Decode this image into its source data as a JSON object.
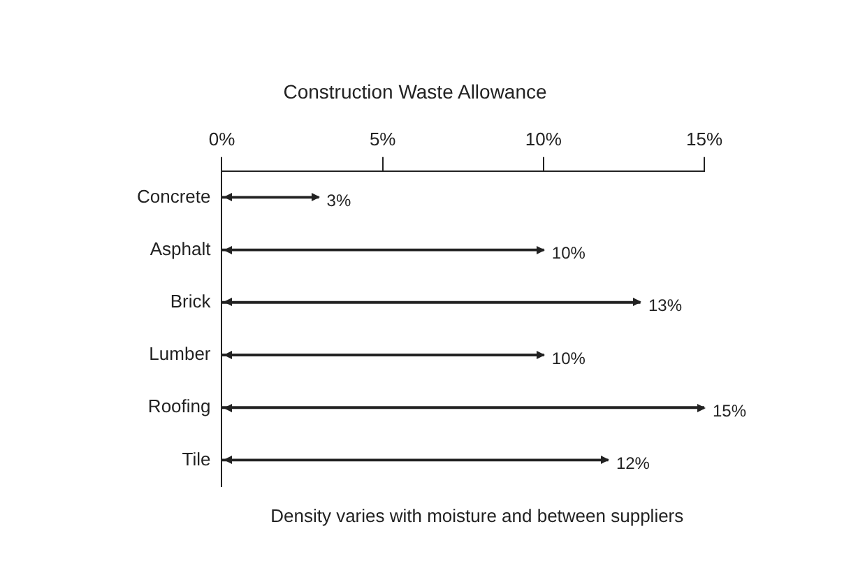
{
  "chart_data": {
    "type": "bar",
    "orientation": "horizontal",
    "title": "Construction Waste Allowance",
    "categories": [
      "Concrete",
      "Asphalt",
      "Brick",
      "Lumber",
      "Roofing",
      "Tile"
    ],
    "values": [
      3,
      10,
      13,
      10,
      15,
      12
    ],
    "value_labels": [
      "3%",
      "10%",
      "13%",
      "10%",
      "15%",
      "12%"
    ],
    "color": "#222222",
    "xlim": [
      0,
      15
    ],
    "xticks": [
      {
        "value": 0,
        "label": "0%"
      },
      {
        "value": 5,
        "label": "5%"
      },
      {
        "value": 10,
        "label": "10%"
      },
      {
        "value": 15,
        "label": "15%"
      }
    ],
    "grid": false,
    "legend": false,
    "annotations": [
      "Density varies with moisture and between suppliers"
    ]
  }
}
